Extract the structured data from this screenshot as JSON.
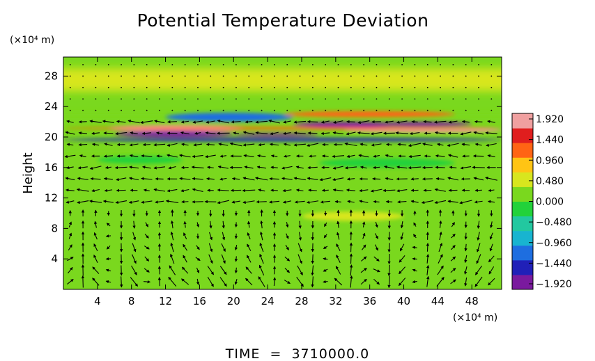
{
  "chart_data": {
    "type": "heatmap",
    "title": "Potential Temperature Deviation",
    "ylabel": "Height",
    "xunit": "(×10⁴ m)",
    "yunit": "(×10⁴ m)",
    "xlim": [
      0,
      51.5
    ],
    "ylim": [
      0,
      30.5
    ],
    "xticks": [
      4,
      8,
      12,
      16,
      20,
      24,
      28,
      32,
      36,
      40,
      44,
      48
    ],
    "yticks": [
      4,
      8,
      12,
      16,
      20,
      24,
      28
    ],
    "colorbar": {
      "min": -1.92,
      "max": 1.92,
      "ticks": [
        "1.920",
        "1.440",
        "0.960",
        "0.480",
        "0.000",
        "−0.480",
        "−0.960",
        "−1.440",
        "−1.920"
      ],
      "colors": [
        "#7a1a9e",
        "#2020b8",
        "#1e6ee0",
        "#18b4d0",
        "#22c8a0",
        "#22d23a",
        "#7ad81e",
        "#d8e61e",
        "#ffc414",
        "#ff6414",
        "#e01e1e",
        "#f0a0a0"
      ]
    },
    "background_value": 0.05,
    "features": [
      {
        "kind": "band",
        "x": [
          0,
          51.5
        ],
        "y": [
          26,
          29
        ],
        "value": 0.35,
        "note": "upper light band"
      },
      {
        "kind": "band",
        "x": [
          0,
          51.5
        ],
        "y": [
          18.5,
          23
        ],
        "value": 0.0,
        "note": "disturbed layer"
      },
      {
        "kind": "blob",
        "x": [
          12,
          27
        ],
        "y": [
          22.0,
          23.2
        ],
        "value": -1.0
      },
      {
        "kind": "blob",
        "x": [
          5,
          22
        ],
        "y": [
          20.7,
          21.6
        ],
        "value": 1.8
      },
      {
        "kind": "blob",
        "x": [
          6,
          20
        ],
        "y": [
          20.0,
          20.8
        ],
        "value": -1.9
      },
      {
        "kind": "blob",
        "x": [
          20,
          30
        ],
        "y": [
          20.1,
          20.5
        ],
        "value": -1.7
      },
      {
        "kind": "blob",
        "x": [
          26,
          46
        ],
        "y": [
          22.6,
          23.4
        ],
        "value": 1.0
      },
      {
        "kind": "blob",
        "x": [
          27,
          40
        ],
        "y": [
          21.3,
          22.0
        ],
        "value": -1.8
      },
      {
        "kind": "blob",
        "x": [
          36,
          48
        ],
        "y": [
          21.4,
          22.0
        ],
        "value": -1.9
      },
      {
        "kind": "blob",
        "x": [
          33,
          51.5
        ],
        "y": [
          20.6,
          21.2
        ],
        "value": 1.8
      },
      {
        "kind": "blob",
        "x": [
          0,
          51.5
        ],
        "y": [
          19.4,
          19.9
        ],
        "value": -1.3
      },
      {
        "kind": "blob",
        "x": [
          0,
          51.5
        ],
        "y": [
          21.0,
          21.3
        ],
        "value": 1.2
      },
      {
        "kind": "blob",
        "x": [
          28,
          40
        ],
        "y": [
          9.0,
          10.2
        ],
        "value": 0.6
      },
      {
        "kind": "blob",
        "x": [
          4,
          14
        ],
        "y": [
          16.5,
          17.5
        ],
        "value": -0.3
      },
      {
        "kind": "blob",
        "x": [
          30,
          46
        ],
        "y": [
          16.0,
          17.2
        ],
        "value": -0.3
      }
    ],
    "vector_field": {
      "description": "wind vectors drawn as black arrows over the full domain",
      "x_spacing": 1.5,
      "y_spacing": 1.5
    }
  },
  "footer": {
    "time_label": "TIME  =  3710000.0"
  }
}
